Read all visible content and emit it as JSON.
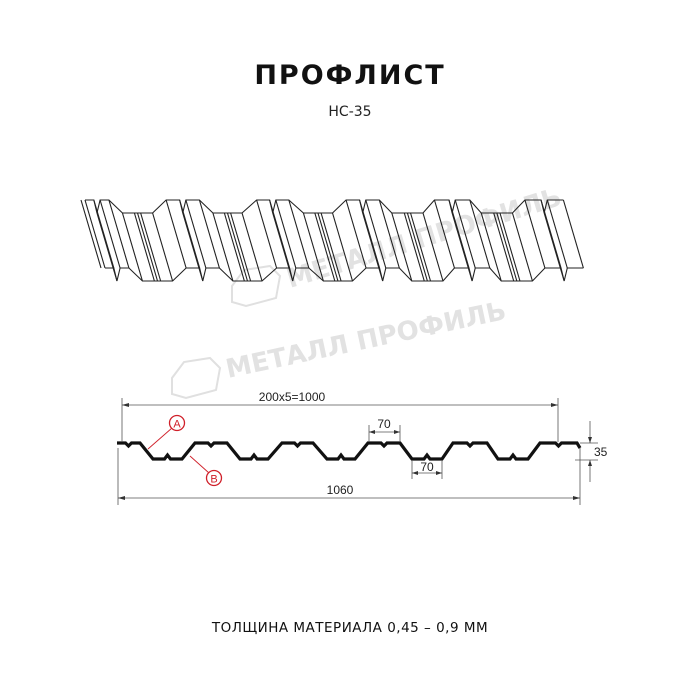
{
  "header": {
    "title": "ПРОФЛИСТ",
    "model": "НС-35"
  },
  "watermark": {
    "text": "МЕТАЛЛ ПРОФИЛЬ"
  },
  "section": {
    "pitch_label": "200x5=1000",
    "top_width_label": "70",
    "bottom_width_label": "70",
    "height_label": "35",
    "total_width_label": "1060",
    "marker_a": "A",
    "marker_b": "B",
    "marker_color": "#d0202a"
  },
  "footer": {
    "thickness": "ТОЛЩИНА МАТЕРИАЛА 0,45 – 0,9 ММ"
  }
}
